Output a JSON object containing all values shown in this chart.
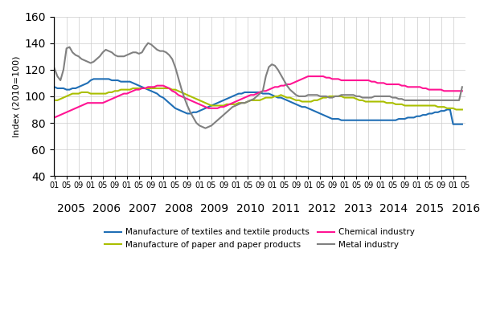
{
  "title": "",
  "ylabel": "Index (2010=100)",
  "ylim": [
    40,
    160
  ],
  "yticks": [
    40,
    60,
    80,
    100,
    120,
    140,
    160
  ],
  "line_color_textiles": "#1f6eb5",
  "line_color_paper": "#aabf00",
  "line_color_chemical": "#ff1493",
  "line_color_metal": "#808080",
  "legend_labels": [
    "Manufacture of textiles and textile products",
    "Manufacture of paper and paper products",
    "Chemical industry",
    "Metal industry"
  ],
  "textiles": [
    107,
    106,
    106,
    106,
    105,
    105,
    106,
    106,
    107,
    108,
    109,
    110,
    112,
    113,
    113,
    113,
    113,
    113,
    113,
    112,
    112,
    112,
    111,
    111,
    111,
    111,
    110,
    109,
    108,
    107,
    106,
    105,
    104,
    103,
    102,
    100,
    99,
    97,
    95,
    93,
    91,
    90,
    89,
    88,
    87,
    87,
    88,
    88,
    89,
    90,
    91,
    92,
    93,
    94,
    95,
    96,
    97,
    98,
    99,
    100,
    101,
    102,
    102,
    103,
    103,
    103,
    103,
    103,
    103,
    102,
    102,
    102,
    101,
    100,
    99,
    99,
    98,
    97,
    96,
    95,
    94,
    93,
    92,
    92,
    91,
    90,
    89,
    88,
    87,
    86,
    85,
    84,
    83,
    83,
    83,
    82,
    82,
    82,
    82,
    82,
    82,
    82,
    82,
    82,
    82,
    82,
    82,
    82,
    82,
    82,
    82,
    82,
    82,
    82,
    83,
    83,
    83,
    84,
    84,
    84,
    85,
    85,
    86,
    86,
    87,
    87,
    88,
    88,
    89,
    89,
    90,
    90,
    79,
    79,
    79,
    79
  ],
  "paper": [
    97,
    97,
    98,
    99,
    100,
    101,
    102,
    102,
    102,
    103,
    103,
    103,
    102,
    102,
    102,
    102,
    102,
    102,
    103,
    103,
    104,
    104,
    105,
    105,
    105,
    105,
    106,
    106,
    106,
    106,
    106,
    106,
    106,
    106,
    106,
    106,
    106,
    106,
    106,
    105,
    105,
    104,
    103,
    102,
    101,
    100,
    99,
    98,
    97,
    96,
    95,
    94,
    93,
    93,
    93,
    93,
    93,
    94,
    94,
    94,
    94,
    95,
    95,
    95,
    96,
    97,
    97,
    97,
    97,
    98,
    99,
    99,
    99,
    100,
    100,
    101,
    100,
    99,
    99,
    98,
    97,
    97,
    96,
    96,
    96,
    96,
    97,
    97,
    98,
    99,
    99,
    100,
    100,
    100,
    100,
    100,
    99,
    99,
    99,
    99,
    98,
    97,
    97,
    96,
    96,
    96,
    96,
    96,
    96,
    96,
    95,
    95,
    95,
    94,
    94,
    94,
    93,
    93,
    93,
    93,
    93,
    93,
    93,
    93,
    93,
    93,
    93,
    92,
    92,
    92,
    91,
    91,
    91,
    90,
    90,
    90
  ],
  "chemical": [
    84,
    85,
    86,
    87,
    88,
    89,
    90,
    91,
    92,
    93,
    94,
    95,
    95,
    95,
    95,
    95,
    95,
    96,
    97,
    98,
    99,
    100,
    101,
    102,
    102,
    103,
    104,
    105,
    105,
    106,
    106,
    107,
    107,
    107,
    108,
    108,
    108,
    107,
    106,
    104,
    103,
    101,
    100,
    99,
    98,
    97,
    96,
    95,
    94,
    93,
    92,
    91,
    91,
    91,
    91,
    92,
    92,
    93,
    94,
    95,
    96,
    97,
    98,
    99,
    100,
    101,
    101,
    102,
    103,
    104,
    104,
    105,
    106,
    107,
    107,
    108,
    108,
    109,
    109,
    110,
    111,
    112,
    113,
    114,
    115,
    115,
    115,
    115,
    115,
    115,
    114,
    114,
    113,
    113,
    113,
    112,
    112,
    112,
    112,
    112,
    112,
    112,
    112,
    112,
    112,
    111,
    111,
    110,
    110,
    110,
    109,
    109,
    109,
    109,
    109,
    108,
    108,
    107,
    107,
    107,
    107,
    107,
    106,
    106,
    105,
    105,
    105,
    105,
    105,
    104,
    104,
    104,
    104,
    104,
    104,
    104
  ],
  "metal": [
    121,
    115,
    112,
    120,
    136,
    137,
    133,
    131,
    130,
    128,
    127,
    126,
    125,
    126,
    128,
    130,
    133,
    135,
    134,
    133,
    131,
    130,
    130,
    130,
    131,
    132,
    133,
    133,
    132,
    133,
    137,
    140,
    139,
    137,
    135,
    134,
    134,
    133,
    131,
    128,
    122,
    114,
    106,
    99,
    93,
    88,
    84,
    80,
    78,
    77,
    76,
    77,
    78,
    80,
    82,
    84,
    86,
    88,
    90,
    92,
    93,
    94,
    95,
    95,
    96,
    97,
    98,
    100,
    102,
    104,
    115,
    122,
    124,
    123,
    120,
    116,
    112,
    108,
    105,
    103,
    101,
    100,
    100,
    100,
    101,
    101,
    101,
    101,
    100,
    100,
    100,
    99,
    99,
    100,
    100,
    101,
    101,
    101,
    101,
    101,
    100,
    100,
    99,
    99,
    99,
    99,
    100,
    100,
    100,
    100,
    100,
    100,
    99,
    99,
    98,
    98,
    97,
    97,
    97,
    97,
    97,
    97,
    97,
    97,
    97,
    97,
    97,
    97,
    97,
    97,
    97,
    97,
    97,
    97,
    97,
    107
  ]
}
